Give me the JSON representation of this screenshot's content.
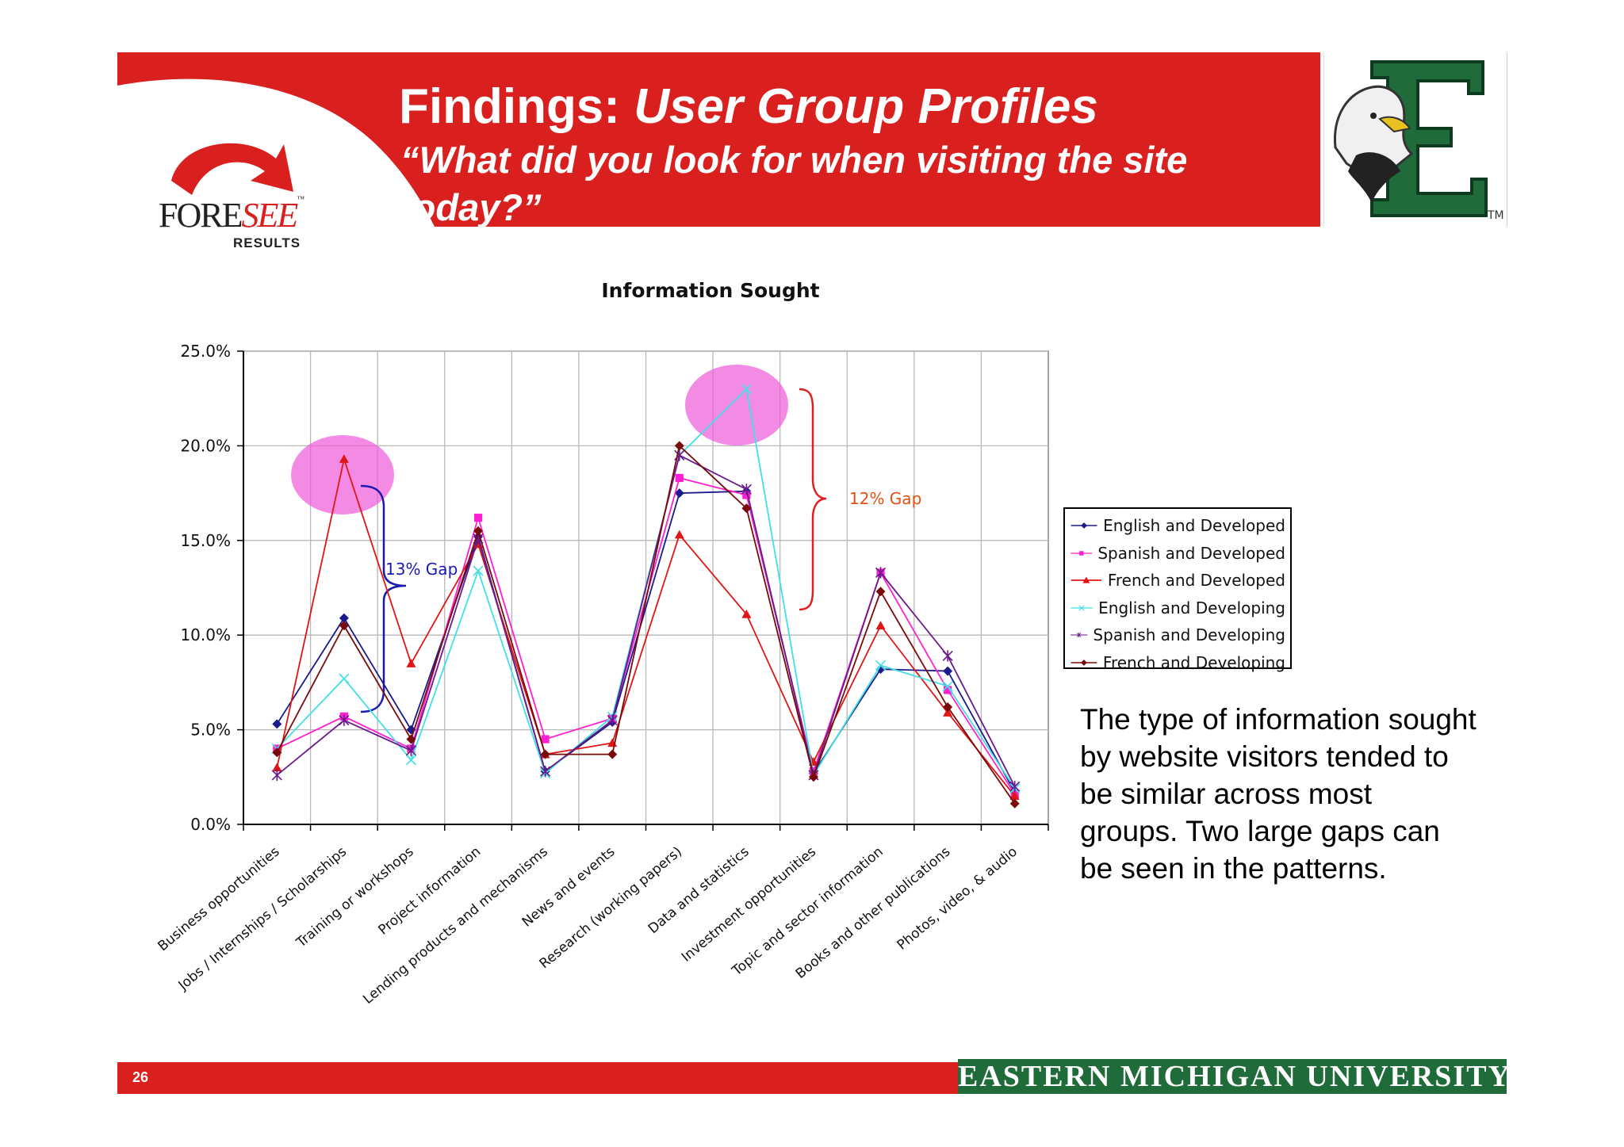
{
  "header": {
    "title_prefix": "Findings:",
    "title_accent": "User Group Profiles",
    "subtitle": "“What did you look for when visiting the site today?”"
  },
  "logos": {
    "foresee_main": "FORE",
    "foresee_accent": "SEE",
    "foresee_tm": "™",
    "foresee_sub": "RESULTS",
    "emu_tm": "TM"
  },
  "colors": {
    "brand_red": "#da1f1f",
    "emu_green": "#1f6b3a"
  },
  "chart_data": {
    "type": "line",
    "title": "Information Sought",
    "xlabel": "",
    "ylabel": "",
    "ylim": [
      0,
      25
    ],
    "y_ticks": [
      "0.0%",
      "5.0%",
      "10.0%",
      "15.0%",
      "20.0%",
      "25.0%"
    ],
    "grid": true,
    "legend_position": "right",
    "categories": [
      "Business opportunities",
      "Jobs / Internships / Scholarships",
      "Training or workshops",
      "Project information",
      "Lending products and mechanisms",
      "News and events",
      "Research (working papers)",
      "Data and statistics",
      "Investment opportunities",
      "Topic and sector information",
      "Books and other publications",
      "Photos, video, & audio"
    ],
    "series": [
      {
        "name": "English and Developed",
        "color": "#1a1a8c",
        "marker": "diamond",
        "values": [
          5.3,
          10.9,
          5.0,
          15.2,
          2.8,
          5.4,
          17.5,
          17.6,
          2.7,
          8.2,
          8.1,
          1.7
        ]
      },
      {
        "name": "Spanish and Developed",
        "color": "#ff1fd2",
        "marker": "square",
        "values": [
          4.0,
          5.7,
          4.0,
          16.2,
          4.5,
          5.6,
          18.3,
          17.4,
          2.8,
          13.3,
          7.1,
          1.6
        ]
      },
      {
        "name": "French and Developed",
        "color": "#e01515",
        "marker": "triangle",
        "values": [
          3.0,
          19.3,
          8.5,
          14.8,
          3.7,
          4.3,
          15.3,
          11.1,
          3.3,
          10.5,
          5.9,
          1.5
        ]
      },
      {
        "name": "English and Developing",
        "color": "#3fe0e6",
        "marker": "x",
        "values": [
          4.0,
          7.7,
          3.4,
          13.4,
          2.7,
          5.7,
          19.5,
          23.0,
          2.6,
          8.4,
          7.3,
          1.9
        ]
      },
      {
        "name": "Spanish and Developing",
        "color": "#6a1a8a",
        "marker": "star",
        "values": [
          2.6,
          5.5,
          3.9,
          15.1,
          2.8,
          5.5,
          19.5,
          17.7,
          2.6,
          13.3,
          8.9,
          2.0
        ]
      },
      {
        "name": "French and Developing",
        "color": "#7a0a0a",
        "marker": "diamond",
        "values": [
          3.8,
          10.5,
          4.5,
          15.5,
          3.7,
          3.7,
          20.0,
          16.7,
          2.5,
          12.3,
          6.2,
          1.1
        ]
      }
    ],
    "annotations": [
      {
        "text": "13% Gap",
        "color": "#1a1ab0"
      },
      {
        "text": "12% Gap",
        "color": "#e05010"
      }
    ]
  },
  "description": "The type of information sought by website visitors tended to be similar across most groups. Two large gaps can be seen in the patterns.",
  "footer": {
    "page_number": "26",
    "university": "EASTERN MICHIGAN UNIVERSITY"
  }
}
